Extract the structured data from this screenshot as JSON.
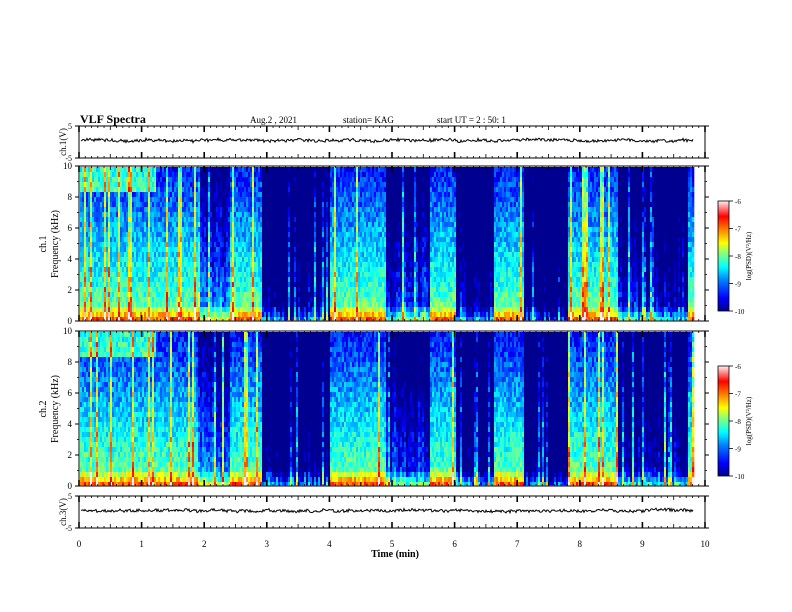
{
  "header": {
    "title": "VLF Spectra",
    "date": "Aug.2  , 2021",
    "station": "station= KAG",
    "start": "start  UT =   2 : 50: 1"
  },
  "colors": {
    "colormap": [
      "#000090",
      "#0000ff",
      "#0080ff",
      "#00ffff",
      "#80ff80",
      "#ffff00",
      "#ff8000",
      "#ff0000",
      "#fff0f0"
    ],
    "trace": "#000000",
    "frame": "#000000"
  },
  "chart_data": [
    {
      "type": "line",
      "name": "ch1-voltage",
      "ylabel": "ch.1(V)",
      "ylim": [
        -5,
        5
      ],
      "yticks": [
        "5",
        "-5"
      ],
      "xlim": [
        0,
        10
      ],
      "mean_level": 0.5
    },
    {
      "type": "heatmap",
      "name": "ch1-spectrogram",
      "ylabel_line1": "ch.1",
      "ylabel_line2": "Frequency  (kHz)",
      "ylim": [
        0,
        10
      ],
      "yticks": [
        "0",
        "2",
        "4",
        "6",
        "8",
        "10"
      ],
      "xlim": [
        0,
        9.8
      ],
      "colorbar": {
        "label": "log(PSD)(V²/Hz)",
        "ticks": [
          "-6",
          "-7",
          "-8",
          "-9",
          "-10"
        ],
        "range": [
          -10,
          -6
        ]
      }
    },
    {
      "type": "heatmap",
      "name": "ch2-spectrogram",
      "ylabel_line1": "ch.2",
      "ylabel_line2": "Frequency  (kHz)",
      "ylim": [
        0,
        10
      ],
      "yticks": [
        "0",
        "2",
        "4",
        "6",
        "8",
        "10"
      ],
      "xlim": [
        0,
        9.8
      ],
      "colorbar": {
        "label": "log(PSD)(V²/Hz)",
        "ticks": [
          "-6",
          "-7",
          "-8",
          "-9",
          "-10"
        ],
        "range": [
          -10,
          -6
        ]
      }
    },
    {
      "type": "line",
      "name": "ch3-voltage",
      "ylabel": "ch.3(V)",
      "ylim": [
        -5,
        5
      ],
      "yticks": [
        "5",
        "-5"
      ],
      "xlim": [
        0,
        10
      ],
      "mean_level": 0.4
    }
  ],
  "xaxis": {
    "label": "Time  (min)",
    "ticks": [
      "0",
      "1",
      "2",
      "3",
      "4",
      "5",
      "6",
      "7",
      "8",
      "9",
      "10"
    ]
  }
}
